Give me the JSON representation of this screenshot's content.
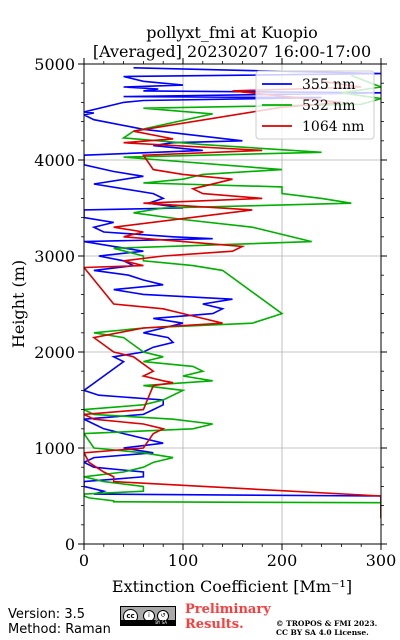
{
  "chart_data": {
    "type": "line",
    "title": "pollyxt_fmi at Kuopio",
    "subtitle": "[Averaged] 20230207 16:00-17:00",
    "xlabel": "Extinction Coefficient [Mm⁻¹]",
    "ylabel": "Height (m)",
    "xlim": [
      0,
      300
    ],
    "ylim": [
      0,
      5000
    ],
    "xticks": [
      0,
      100,
      200,
      300
    ],
    "yticks": [
      0,
      1000,
      2000,
      3000,
      4000,
      5000
    ],
    "grid": true,
    "legend_position": "top-right",
    "series": [
      {
        "name": "355 nm",
        "color": "#0000ff",
        "x": [
          50,
          300,
          40,
          60,
          100,
          40,
          75,
          60,
          300,
          40,
          240,
          60,
          40,
          0,
          10,
          0,
          10,
          60,
          160,
          90,
          70,
          120,
          0,
          0,
          30,
          60,
          10,
          40,
          70,
          80,
          65,
          100,
          0,
          0,
          30,
          10,
          20,
          90,
          130,
          0,
          30,
          60,
          15,
          40,
          50,
          10,
          45,
          60,
          80,
          30,
          60,
          150,
          120,
          140,
          130,
          70,
          100,
          80,
          60,
          85,
          90,
          70,
          60,
          30,
          40,
          0,
          15,
          80,
          80,
          70,
          60,
          0,
          10,
          20,
          40,
          60,
          80,
          40,
          70,
          10,
          0,
          10,
          60,
          60,
          0,
          0,
          20,
          10,
          300,
          300,
          300
        ],
        "y": [
          4960,
          4900,
          4870,
          4820,
          4780,
          4760,
          4740,
          4720,
          4700,
          4660,
          4650,
          4620,
          4600,
          4500,
          4490,
          4470,
          4420,
          4320,
          4200,
          4180,
          4150,
          4100,
          4050,
          3950,
          3880,
          3830,
          3750,
          3700,
          3650,
          3600,
          3550,
          3500,
          3480,
          3400,
          3350,
          3300,
          3250,
          3200,
          3180,
          3150,
          3100,
          3050,
          3000,
          2950,
          2900,
          2850,
          2800,
          2750,
          2700,
          2650,
          2600,
          2550,
          2500,
          2450,
          2400,
          2350,
          2300,
          2250,
          2200,
          2150,
          2100,
          2050,
          2000,
          1950,
          1900,
          1600,
          1550,
          1500,
          1450,
          1400,
          1350,
          1300,
          1250,
          1200,
          1150,
          1100,
          1050,
          1000,
          950,
          900,
          850,
          800,
          750,
          700,
          650,
          600,
          550,
          520,
          500,
          450,
          270
        ]
      },
      {
        "name": "532 nm",
        "color": "#00b000",
        "x": [
          270,
          300,
          260,
          300,
          280,
          60,
          130,
          50,
          40,
          120,
          240,
          40,
          200,
          120,
          100,
          60,
          200,
          200,
          240,
          270,
          80,
          50,
          100,
          170,
          230,
          30,
          60,
          60,
          110,
          140,
          200,
          170,
          60,
          10,
          40,
          60,
          80,
          60,
          110,
          120,
          100,
          130,
          60,
          100,
          80,
          60,
          0,
          10,
          90,
          130,
          110,
          0,
          10,
          60,
          90,
          70,
          60,
          40,
          0,
          20,
          60,
          60,
          0,
          0,
          5,
          30,
          30,
          300,
          300,
          300
        ],
        "y": [
          4880,
          4760,
          4700,
          4640,
          4580,
          4540,
          4480,
          4300,
          4230,
          4160,
          4080,
          4030,
          3900,
          3850,
          3800,
          3760,
          3720,
          3650,
          3600,
          3550,
          3500,
          3450,
          3380,
          3300,
          3150,
          3080,
          3000,
          2950,
          2900,
          2850,
          2400,
          2300,
          2250,
          2200,
          2150,
          2000,
          1950,
          1900,
          1850,
          1800,
          1750,
          1700,
          1650,
          1600,
          1500,
          1450,
          1400,
          1350,
          1300,
          1250,
          1200,
          1150,
          1000,
          950,
          900,
          850,
          800,
          750,
          700,
          650,
          600,
          550,
          520,
          500,
          480,
          450,
          440,
          430,
          300,
          270
        ]
      },
      {
        "name": "1064 nm",
        "color": "#dd0000",
        "x": [
          240,
          280,
          150,
          260,
          200,
          50,
          90,
          40,
          180,
          60,
          70,
          100,
          150,
          110,
          120,
          180,
          60,
          170,
          30,
          60,
          40,
          100,
          160,
          150,
          80,
          40,
          60,
          0,
          30,
          80,
          100,
          120,
          140,
          60,
          10,
          30,
          50,
          70,
          60,
          80,
          90,
          70,
          60,
          0,
          10,
          60,
          80,
          70,
          60,
          0,
          5,
          20,
          30,
          30,
          300,
          300,
          300
        ],
        "y": [
          4820,
          4760,
          4720,
          4600,
          4550,
          4300,
          4220,
          4180,
          4100,
          4050,
          3900,
          3850,
          3800,
          3700,
          3650,
          3600,
          3550,
          3480,
          3300,
          3250,
          3200,
          3150,
          3100,
          3050,
          3000,
          2950,
          2900,
          2880,
          2500,
          2450,
          2400,
          2350,
          2300,
          2250,
          2150,
          2000,
          1950,
          1800,
          1750,
          1700,
          1680,
          1650,
          1400,
          1350,
          1300,
          1250,
          1200,
          1150,
          1000,
          950,
          850,
          750,
          700,
          650,
          500,
          450,
          270
        ]
      }
    ]
  },
  "footer": {
    "version": "Version: 3.5",
    "method": "Method: Raman",
    "preliminary_line1": "Preliminary",
    "preliminary_line2": "Results.",
    "copyright_line1": "© TROPOS & FMI 2023.",
    "copyright_line2": "CC BY SA 4.0 License."
  },
  "license_badge": {
    "main": "cc",
    "by": "BY",
    "sa": "SA"
  }
}
